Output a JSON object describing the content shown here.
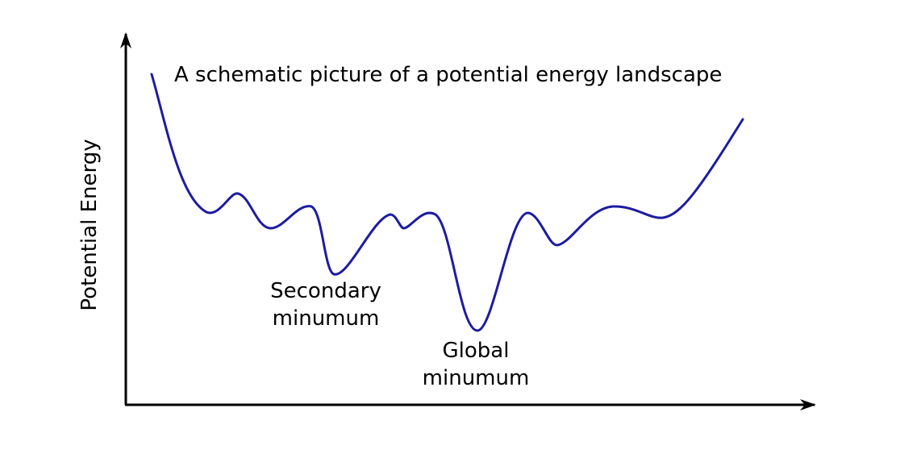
{
  "title": "A schematic picture of a potential energy landscape",
  "y_axis_label": "Potential Energy",
  "annotations": {
    "secondary_minimum": [
      "Secondary",
      "minumum"
    ],
    "global_minimum": [
      "Global",
      "minumum"
    ]
  },
  "colors": {
    "curve": "#1c1ca0",
    "axes": "#000000",
    "text": "#000000"
  }
}
